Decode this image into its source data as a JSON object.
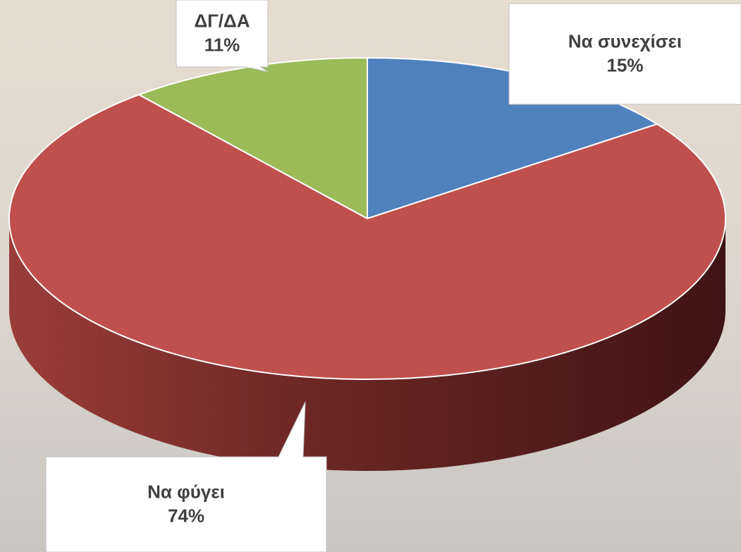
{
  "chart_data": {
    "type": "pie3d",
    "categories": [
      "Να συνεχίσει",
      "Να φύγει",
      "ΔΓ/ΔΑ"
    ],
    "values": [
      15,
      74,
      11
    ],
    "value_labels": [
      "15%",
      "74%",
      "11%"
    ],
    "colors": [
      "#4f81bd",
      "#c0504d",
      "#9bbb59"
    ]
  }
}
